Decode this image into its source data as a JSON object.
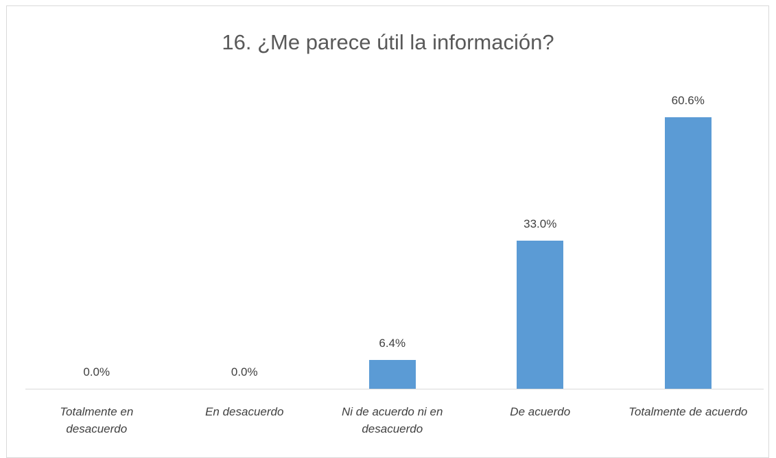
{
  "chart_data": {
    "type": "bar",
    "title": "16. ¿Me parece útil la información?",
    "categories": [
      "Totalmente en desacuerdo",
      "En desacuerdo",
      "Ni de acuerdo ni en desacuerdo",
      "De acuerdo",
      "Totalmente de acuerdo"
    ],
    "values": [
      0,
      0,
      6.4,
      33,
      60.6
    ],
    "value_labels": [
      "0.0%",
      "0.0%",
      "6.4%",
      "33.0%",
      "60.6%"
    ],
    "color": "#5b9bd5"
  }
}
